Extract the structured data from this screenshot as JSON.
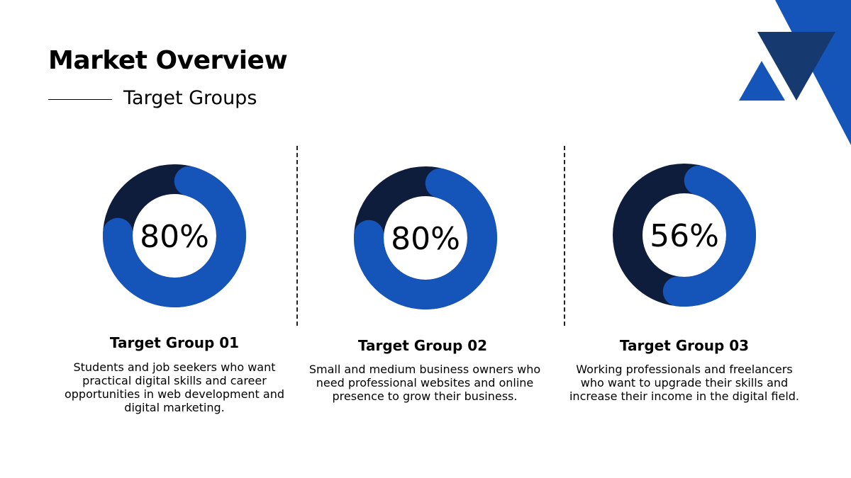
{
  "header": {
    "title": "Market Overview",
    "subtitle": "Target Groups"
  },
  "colors": {
    "primary_blue": "#1555BA",
    "dark_navy": "#0E1D3C",
    "deco_navy": "#163A70"
  },
  "chart_data": [
    {
      "type": "pie",
      "label": "80%",
      "values": [
        80,
        20
      ],
      "colors": [
        "#1555BA",
        "#0E1D3C"
      ],
      "title": "Target Group 01"
    },
    {
      "type": "pie",
      "label": "80%",
      "values": [
        80,
        20
      ],
      "colors": [
        "#1555BA",
        "#0E1D3C"
      ],
      "title": "Target Group 02"
    },
    {
      "type": "pie",
      "label": "56%",
      "values": [
        56,
        44
      ],
      "colors": [
        "#1555BA",
        "#0E1D3C"
      ],
      "title": "Target Group 03"
    }
  ],
  "groups": [
    {
      "title": "Target Group 01",
      "description": "Students and job seekers who want practical digital skills and career opportunities in web development and digital marketing."
    },
    {
      "title": "Target Group 02",
      "description": "Small and medium business owners who need professional websites and online presence to grow their business."
    },
    {
      "title": "Target Group 03",
      "description": "Working professionals and freelancers who want to upgrade their skills and increase their income in the digital field."
    }
  ]
}
